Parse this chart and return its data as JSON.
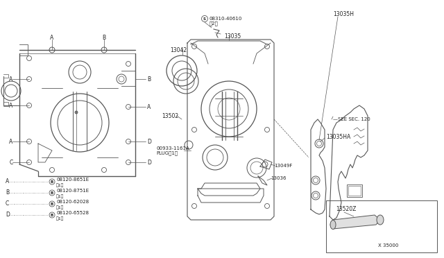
{
  "bg_color": "#ffffff",
  "line_color": "#555555",
  "text_color": "#222222",
  "labels": {
    "A": "A",
    "B": "B",
    "C": "C",
    "D": "D",
    "bolt_A": "08120-8651E",
    "bolt_B": "08120-8751E",
    "bolt_C": "08120-62028",
    "bolt_D": "08120-65528",
    "qty_1": "（1）",
    "part_13035": "13035",
    "part_13035H": "13035H",
    "part_13035HA": "13035HA",
    "part_13036": "13036",
    "part_13042": "13042",
    "part_13049F": "13049F",
    "part_13502": "13502",
    "part_13520Z": "13520Z",
    "part_00933": "00933-1161A",
    "part_00933b": "PLUG（1）",
    "part_08310": "08310-40610",
    "part_08310b": "（2）",
    "see_sec": "—SEE SEC. 120",
    "x_35000": "X 35000"
  }
}
